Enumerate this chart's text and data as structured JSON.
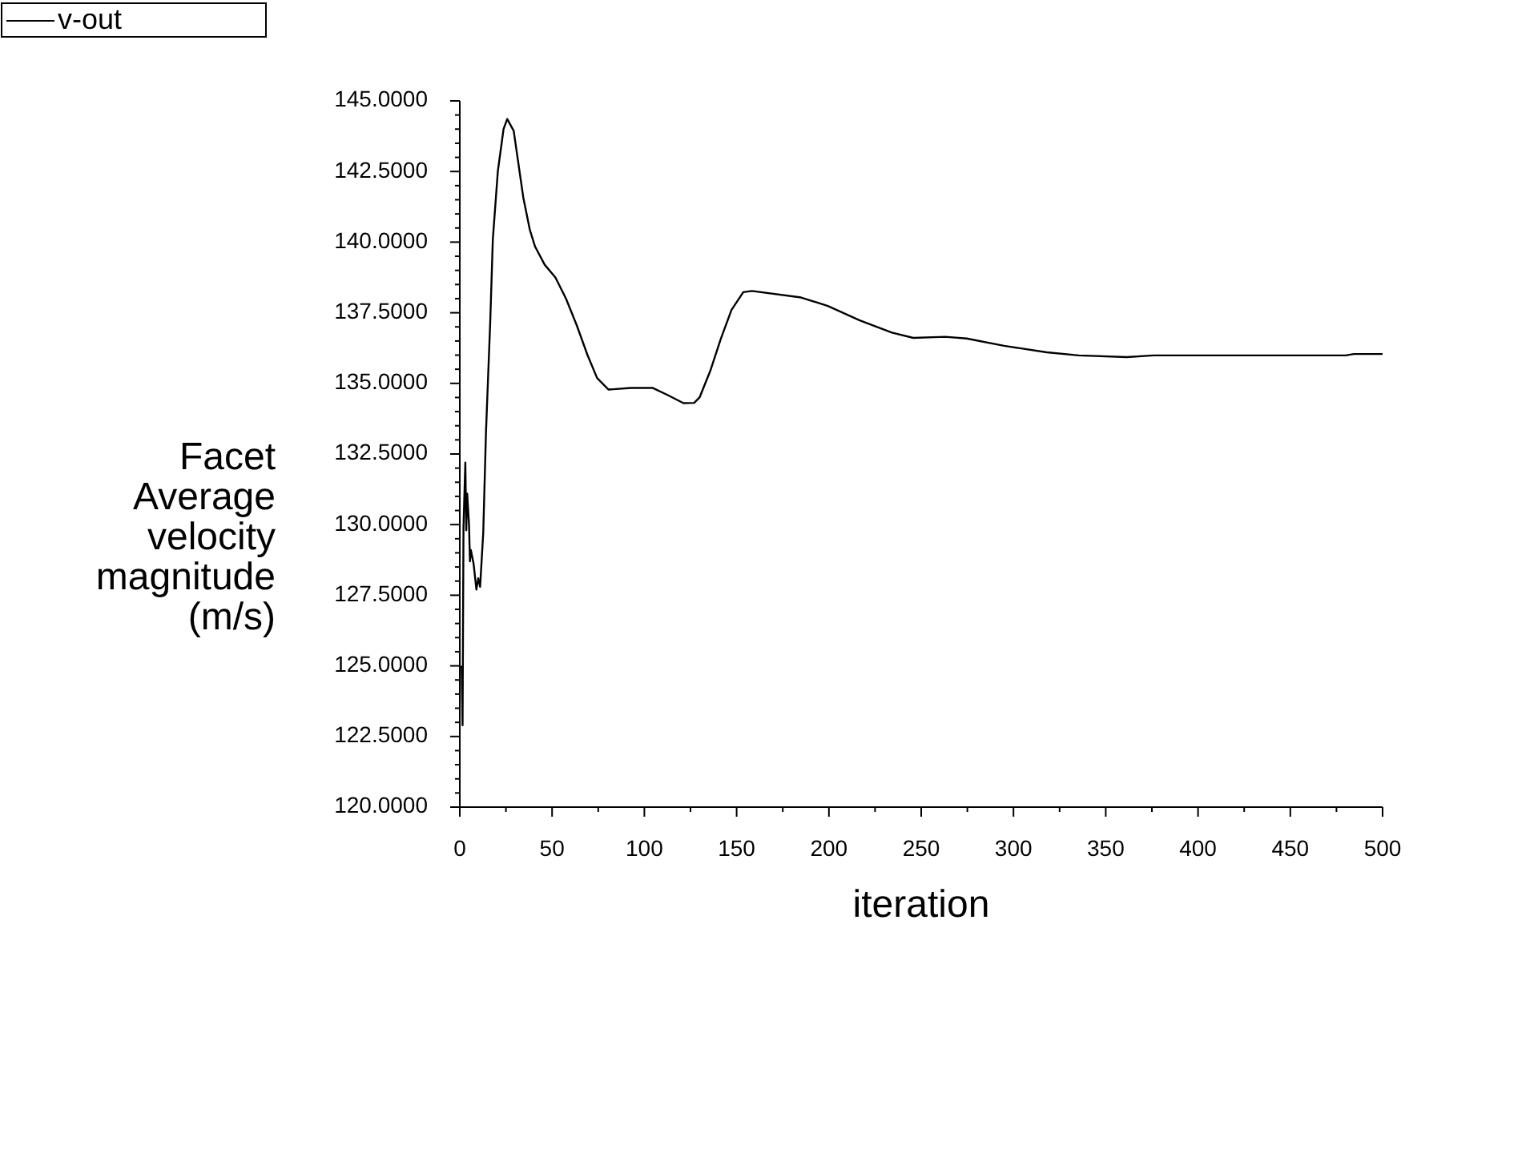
{
  "chart_data": {
    "type": "line",
    "xlabel": "iteration",
    "ylabel": "Facet Average velocity magnitude (m/s)",
    "legend": "top left",
    "grid": false,
    "line_style": "solid",
    "xlim": [
      0,
      500
    ],
    "ylim": [
      120,
      145
    ],
    "xticks": [
      0,
      {
        "value": 25,
        "label": null
      },
      50,
      {
        "value": 75,
        "label": null
      },
      100,
      {
        "value": 125,
        "label": null
      },
      150,
      {
        "value": 175,
        "label": null
      },
      200,
      {
        "value": 225,
        "label": null
      },
      250,
      {
        "value": 275,
        "label": null
      },
      300,
      {
        "value": 325,
        "label": null
      },
      350,
      {
        "value": 375,
        "label": null
      },
      400,
      {
        "value": 425,
        "label": null
      },
      450,
      {
        "value": 475,
        "label": null
      },
      500
    ],
    "yticks": [
      {
        "value": 120,
        "label": "120.0000"
      },
      {
        "value": 120.5,
        "label": null
      },
      {
        "value": 121,
        "label": null
      },
      {
        "value": 121.5,
        "label": null
      },
      {
        "value": 122,
        "label": null
      },
      {
        "value": 122.5,
        "label": "122.5000"
      },
      {
        "value": 123,
        "label": null
      },
      {
        "value": 123.5,
        "label": null
      },
      {
        "value": 124,
        "label": null
      },
      {
        "value": 124.5,
        "label": null
      },
      {
        "value": 125,
        "label": "125.0000"
      },
      {
        "value": 125.5,
        "label": null
      },
      {
        "value": 126,
        "label": null
      },
      {
        "value": 126.5,
        "label": null
      },
      {
        "value": 127,
        "label": null
      },
      {
        "value": 127.5,
        "label": "127.5000"
      },
      {
        "value": 128,
        "label": null
      },
      {
        "value": 128.5,
        "label": null
      },
      {
        "value": 129,
        "label": null
      },
      {
        "value": 129.5,
        "label": null
      },
      {
        "value": 130,
        "label": "130.0000"
      },
      {
        "value": 130.5,
        "label": null
      },
      {
        "value": 131,
        "label": null
      },
      {
        "value": 131.5,
        "label": null
      },
      {
        "value": 132,
        "label": null
      },
      {
        "value": 132.5,
        "label": "132.5000"
      },
      {
        "value": 133,
        "label": null
      },
      {
        "value": 133.5,
        "label": null
      },
      {
        "value": 134,
        "label": null
      },
      {
        "value": 134.5,
        "label": null
      },
      {
        "value": 135,
        "label": "135.0000"
      },
      {
        "value": 135.5,
        "label": null
      },
      {
        "value": 136,
        "label": null
      },
      {
        "value": 136.5,
        "label": null
      },
      {
        "value": 137,
        "label": null
      },
      {
        "value": 137.5,
        "label": "137.5000"
      },
      {
        "value": 138,
        "label": null
      },
      {
        "value": 138.5,
        "label": null
      },
      {
        "value": 139,
        "label": null
      },
      {
        "value": 139.5,
        "label": null
      },
      {
        "value": 140,
        "label": "140.0000"
      },
      {
        "value": 140.5,
        "label": null
      },
      {
        "value": 141,
        "label": null
      },
      {
        "value": 141.5,
        "label": null
      },
      {
        "value": 142,
        "label": null
      },
      {
        "value": 142.5,
        "label": "142.5000"
      },
      {
        "value": 143,
        "label": null
      },
      {
        "value": 143.5,
        "label": null
      },
      {
        "value": 144,
        "label": null
      },
      {
        "value": 144.5,
        "label": null
      },
      {
        "value": 145,
        "label": "145.0000"
      }
    ],
    "series": [
      {
        "name": "v-out",
        "color": "#000000",
        "x": [
          1,
          1.5,
          2,
          3,
          3.5,
          4,
          5,
          5.5,
          6,
          7.5,
          9,
          10,
          11,
          12.7,
          14.2,
          16.5,
          17.9,
          20.6,
          23.7,
          25.7,
          29.2,
          34.4,
          37.9,
          40.8,
          46,
          51.8,
          57.6,
          63.4,
          69.2,
          74.4,
          80.6,
          92.7,
          104.4,
          112.5,
          121.2,
          127,
          129.9,
          135.7,
          141.4,
          147.2,
          153.6,
          158.3,
          184.9,
          199.4,
          216.7,
          234.1,
          245.7,
          263,
          274.6,
          294.9,
          318,
          335.4,
          361.4,
          375.9,
          480,
          484.4,
          500
        ],
        "values": [
          125.0,
          122.9,
          129.9,
          132.2,
          129.8,
          131.1,
          130.0,
          128.7,
          129.1,
          128.6,
          127.7,
          128.1,
          127.8,
          129.7,
          133.3,
          137.2,
          140.1,
          142.5,
          144.0,
          144.36,
          143.94,
          141.58,
          140.45,
          139.84,
          139.2,
          138.75,
          137.99,
          137.05,
          136.0,
          135.19,
          134.78,
          134.84,
          134.84,
          134.59,
          134.3,
          134.31,
          134.5,
          135.44,
          136.57,
          137.6,
          138.23,
          138.27,
          138.04,
          137.74,
          137.23,
          136.8,
          136.61,
          136.65,
          136.59,
          136.33,
          136.1,
          135.99,
          135.93,
          135.99,
          135.99,
          136.04,
          136.04
        ]
      }
    ]
  }
}
